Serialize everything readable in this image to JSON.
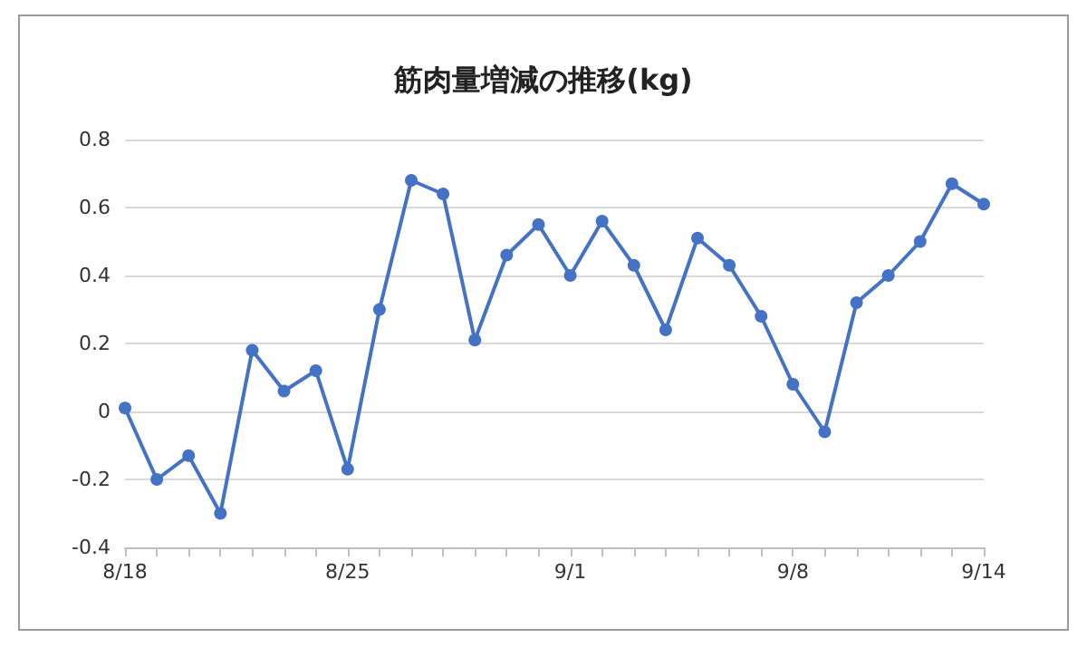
{
  "chart_data": {
    "type": "line",
    "title": "筋肉量増減の推移(kg)",
    "categories": [
      "8/18",
      null,
      null,
      null,
      null,
      null,
      null,
      "8/25",
      null,
      null,
      null,
      null,
      null,
      null,
      "9/1",
      null,
      null,
      null,
      null,
      null,
      null,
      "9/8",
      null,
      null,
      null,
      null,
      null,
      "9/14"
    ],
    "series": [
      {
        "color": "#4472c4",
        "values": [
          0.01,
          -0.2,
          -0.13,
          -0.3,
          0.18,
          0.06,
          0.12,
          -0.17,
          0.3,
          0.68,
          0.64,
          0.21,
          0.46,
          0.55,
          0.4,
          0.56,
          0.43,
          0.24,
          0.51,
          0.43,
          0.28,
          0.08,
          -0.06,
          0.32,
          0.4,
          0.5,
          0.67,
          0.61
        ]
      }
    ],
    "ylim": [
      -0.4,
      0.8
    ],
    "yticks": [
      -0.4,
      -0.2,
      0,
      0.2,
      0.4,
      0.6,
      0.8
    ],
    "grid": "y",
    "marker": "circle",
    "line_style": "solid"
  }
}
